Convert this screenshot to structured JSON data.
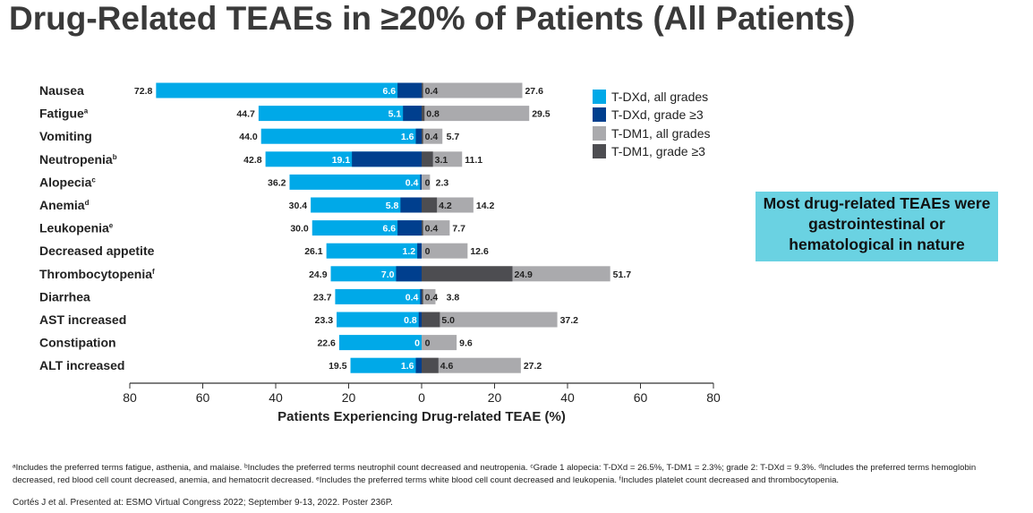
{
  "title": "Drug-Related TEAEs in ≥20% of Patients (All Patients)",
  "callout": "Most drug-related TEAEs were gastrointestinal or hematological in nature",
  "footnote": "ᵃIncludes the preferred terms fatigue, asthenia, and malaise. ᵇIncludes the preferred terms neutrophil count decreased and neutropenia. ᶜGrade 1 alopecia: T-DXd = 26.5%, T-DM1 = 2.3%; grade 2: T-DXd = 9.3%. ᵈIncludes the preferred terms hemoglobin decreased, red blood cell count decreased, anemia, and hematocrit decreased. ᵉIncludes the preferred terms white blood cell count decreased and leukopenia. ᶠIncludes platelet count decreased and thrombocytopenia.",
  "citation": "Cortés J et al. Presented at: ESMO Virtual Congress 2022; September 9-13, 2022. Poster 236P.",
  "chart_data": {
    "type": "bar",
    "orientation": "horizontal-butterfly",
    "xlabel": "Patients Experiencing Drug-related TEAE (%)",
    "xlim": [
      -80,
      80
    ],
    "xticks": [
      80,
      60,
      40,
      20,
      0,
      20,
      40,
      60,
      80
    ],
    "legend_position": "right",
    "colors": {
      "tdxd_all": "#00a9e8",
      "tdxd_g3": "#003f8e",
      "tdm1_all": "#aaaaad",
      "tdm1_g3": "#4d4d51"
    },
    "legend": [
      "T-DXd, all grades",
      "T-DXd, grade ≥3",
      "T-DM1, all grades",
      "T-DM1, grade ≥3"
    ],
    "categories": [
      {
        "label": "Nausea",
        "sup": ""
      },
      {
        "label": "Fatigue",
        "sup": "a"
      },
      {
        "label": "Vomiting",
        "sup": ""
      },
      {
        "label": "Neutropenia",
        "sup": "b"
      },
      {
        "label": "Alopecia",
        "sup": "c"
      },
      {
        "label": "Anemia",
        "sup": "d"
      },
      {
        "label": "Leukopenia",
        "sup": "e"
      },
      {
        "label": "Decreased appetite",
        "sup": ""
      },
      {
        "label": "Thrombocytopenia",
        "sup": "f"
      },
      {
        "label": "Diarrhea",
        "sup": ""
      },
      {
        "label": "AST increased",
        "sup": ""
      },
      {
        "label": "Constipation",
        "sup": ""
      },
      {
        "label": "ALT increased",
        "sup": ""
      }
    ],
    "series": [
      {
        "name": "T-DXd, all grades",
        "values": [
          72.8,
          44.7,
          44.0,
          42.8,
          36.2,
          30.4,
          30.0,
          26.1,
          24.9,
          23.7,
          23.3,
          22.6,
          19.5
        ]
      },
      {
        "name": "T-DXd, grade ≥3",
        "values": [
          6.6,
          5.1,
          1.6,
          19.1,
          0.4,
          5.8,
          6.6,
          1.2,
          7.0,
          0.4,
          0.8,
          0,
          1.6
        ]
      },
      {
        "name": "T-DM1, all grades",
        "values": [
          27.6,
          29.5,
          5.7,
          11.1,
          2.3,
          14.2,
          7.7,
          12.6,
          51.7,
          3.8,
          37.2,
          9.6,
          27.2
        ]
      },
      {
        "name": "T-DM1, grade ≥3",
        "values": [
          0.4,
          0.8,
          0.4,
          3.1,
          0,
          4.2,
          0.4,
          0,
          24.9,
          0.4,
          5.0,
          0,
          4.6
        ]
      }
    ]
  }
}
